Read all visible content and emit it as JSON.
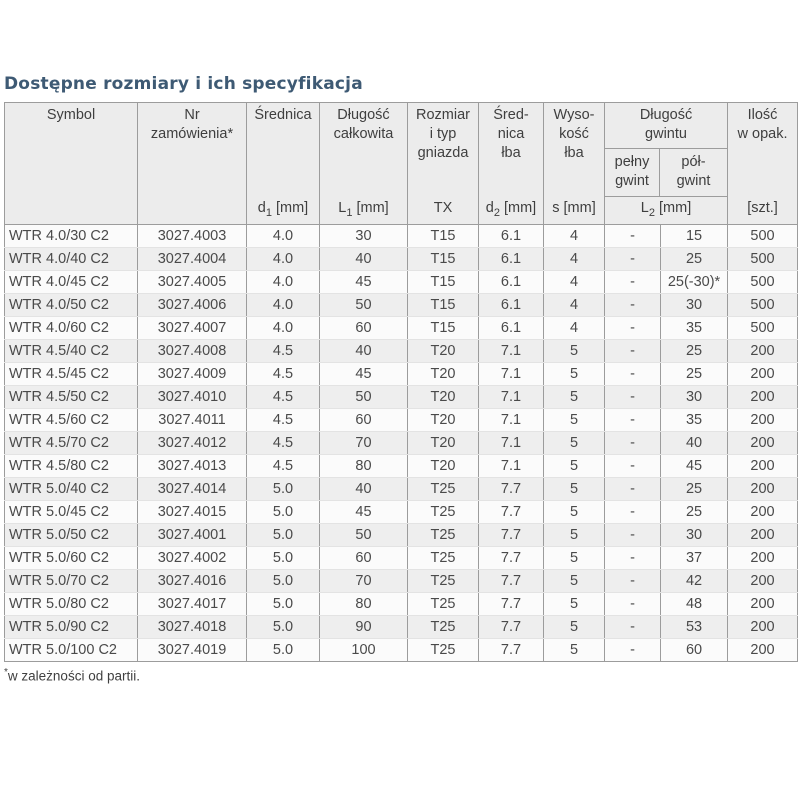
{
  "page": {
    "title": "Dostępne rozmiary i ich specyfikacja",
    "footnote_marker": "*",
    "footnote": "w zależności od partii."
  },
  "colors": {
    "title": "#3e5a74",
    "header_bg": "#ececec",
    "grid_border": "#9c9c9c",
    "row_even_bg": "#eeeeee",
    "row_odd_bg": "#fbfbfb",
    "text": "#454545"
  },
  "table": {
    "columns": [
      {
        "label": "Symbol",
        "unit": {
          "pre": "",
          "sub": "",
          "post": ""
        }
      },
      {
        "label": "Nr\nzamówienia*",
        "unit": {
          "pre": "",
          "sub": "",
          "post": ""
        }
      },
      {
        "label": "Średnica",
        "unit": {
          "pre": "d",
          "sub": "1",
          "post": " [mm]"
        }
      },
      {
        "label": "Długość\ncałkowita",
        "unit": {
          "pre": "L",
          "sub": "1",
          "post": " [mm]"
        }
      },
      {
        "label": "Rozmiar\ni typ\ngniazda",
        "unit": {
          "pre": "TX",
          "sub": "",
          "post": ""
        }
      },
      {
        "label": "Śred-\nnica\nłba",
        "unit": {
          "pre": "d",
          "sub": "2",
          "post": " [mm]"
        }
      },
      {
        "label": "Wyso-\nkość\nłba",
        "unit": {
          "pre": "s",
          "sub": "",
          "post": " [mm]"
        }
      },
      {
        "label": "Ilość\nw opak.",
        "unit": {
          "pre": "[szt.]",
          "sub": "",
          "post": ""
        }
      }
    ],
    "group": {
      "label": "Długość\ngwintu",
      "sub1": "pełny\ngwint",
      "sub2": "pół-\ngwint",
      "unit": {
        "pre": "L",
        "sub": "2",
        "post": " [mm]"
      }
    },
    "rows": [
      [
        "WTR 4.0/30 C2",
        "3027.4003",
        "4.0",
        "30",
        "T15",
        "6.1",
        "4",
        "-",
        "15",
        "500"
      ],
      [
        "WTR 4.0/40 C2",
        "3027.4004",
        "4.0",
        "40",
        "T15",
        "6.1",
        "4",
        "-",
        "25",
        "500"
      ],
      [
        "WTR 4.0/45 C2",
        "3027.4005",
        "4.0",
        "45",
        "T15",
        "6.1",
        "4",
        "-",
        "25(-30)*",
        "500"
      ],
      [
        "WTR 4.0/50 C2",
        "3027.4006",
        "4.0",
        "50",
        "T15",
        "6.1",
        "4",
        "-",
        "30",
        "500"
      ],
      [
        "WTR 4.0/60 C2",
        "3027.4007",
        "4.0",
        "60",
        "T15",
        "6.1",
        "4",
        "-",
        "35",
        "500"
      ],
      [
        "WTR 4.5/40 C2",
        "3027.4008",
        "4.5",
        "40",
        "T20",
        "7.1",
        "5",
        "-",
        "25",
        "200"
      ],
      [
        "WTR 4.5/45 C2",
        "3027.4009",
        "4.5",
        "45",
        "T20",
        "7.1",
        "5",
        "-",
        "25",
        "200"
      ],
      [
        "WTR 4.5/50 C2",
        "3027.4010",
        "4.5",
        "50",
        "T20",
        "7.1",
        "5",
        "-",
        "30",
        "200"
      ],
      [
        "WTR 4.5/60 C2",
        "3027.4011",
        "4.5",
        "60",
        "T20",
        "7.1",
        "5",
        "-",
        "35",
        "200"
      ],
      [
        "WTR 4.5/70 C2",
        "3027.4012",
        "4.5",
        "70",
        "T20",
        "7.1",
        "5",
        "-",
        "40",
        "200"
      ],
      [
        "WTR 4.5/80 C2",
        "3027.4013",
        "4.5",
        "80",
        "T20",
        "7.1",
        "5",
        "-",
        "45",
        "200"
      ],
      [
        "WTR 5.0/40 C2",
        "3027.4014",
        "5.0",
        "40",
        "T25",
        "7.7",
        "5",
        "-",
        "25",
        "200"
      ],
      [
        "WTR 5.0/45 C2",
        "3027.4015",
        "5.0",
        "45",
        "T25",
        "7.7",
        "5",
        "-",
        "25",
        "200"
      ],
      [
        "WTR 5.0/50 C2",
        "3027.4001",
        "5.0",
        "50",
        "T25",
        "7.7",
        "5",
        "-",
        "30",
        "200"
      ],
      [
        "WTR 5.0/60 C2",
        "3027.4002",
        "5.0",
        "60",
        "T25",
        "7.7",
        "5",
        "-",
        "37",
        "200"
      ],
      [
        "WTR 5.0/70 C2",
        "3027.4016",
        "5.0",
        "70",
        "T25",
        "7.7",
        "5",
        "-",
        "42",
        "200"
      ],
      [
        "WTR 5.0/80 C2",
        "3027.4017",
        "5.0",
        "80",
        "T25",
        "7.7",
        "5",
        "-",
        "48",
        "200"
      ],
      [
        "WTR 5.0/90 C2",
        "3027.4018",
        "5.0",
        "90",
        "T25",
        "7.7",
        "5",
        "-",
        "53",
        "200"
      ],
      [
        "WTR 5.0/100 C2",
        "3027.4019",
        "5.0",
        "100",
        "T25",
        "7.7",
        "5",
        "-",
        "60",
        "200"
      ]
    ]
  }
}
